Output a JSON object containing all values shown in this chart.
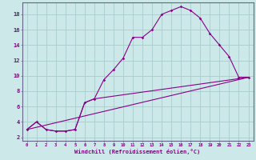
{
  "xlabel": "Windchill (Refroidissement éolien,°C)",
  "bg_color": "#cce8e8",
  "grid_color": "#aacccc",
  "line_color": "#880088",
  "x_min": 0,
  "x_max": 23,
  "y_min": 2,
  "y_max": 19,
  "line1_x": [
    0,
    1,
    2,
    3,
    4,
    5,
    6,
    7,
    8,
    9,
    10,
    11,
    12,
    13,
    14,
    15,
    16,
    17,
    18,
    19,
    20,
    21,
    22,
    23
  ],
  "line1_y": [
    3.0,
    4.0,
    3.0,
    2.8,
    2.8,
    3.0,
    6.5,
    7.0,
    9.5,
    10.8,
    12.3,
    15.0,
    15.0,
    16.0,
    18.0,
    18.5,
    19.0,
    18.5,
    17.5,
    15.5,
    14.0,
    12.5,
    9.8,
    9.8
  ],
  "line2_x": [
    0,
    1,
    2,
    3,
    4,
    5,
    6,
    7,
    23
  ],
  "line2_y": [
    3.0,
    4.0,
    3.0,
    2.8,
    2.8,
    3.0,
    6.5,
    7.0,
    9.8
  ],
  "line3_x": [
    0,
    23
  ],
  "line3_y": [
    3.0,
    9.8
  ],
  "ytick_values": [
    2,
    4,
    6,
    8,
    10,
    12,
    14,
    16,
    18
  ],
  "xtick_labels": [
    "0",
    "1",
    "2",
    "3",
    "4",
    "5",
    "6",
    "7",
    "8",
    "9",
    "10",
    "11",
    "12",
    "13",
    "14",
    "15",
    "16",
    "17",
    "18",
    "19",
    "20",
    "21",
    "22",
    "23"
  ]
}
